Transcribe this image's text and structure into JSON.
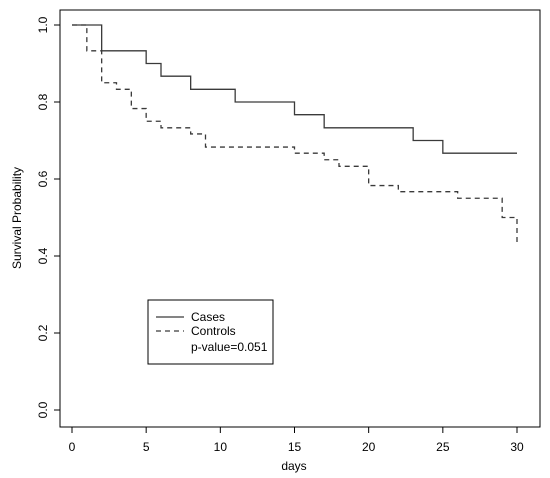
{
  "chart_data": {
    "type": "line",
    "step": true,
    "xlabel": "days",
    "ylabel": "Survival Probability",
    "xlim": [
      0,
      30
    ],
    "ylim": [
      0,
      1
    ],
    "x_ticks": [
      0,
      5,
      10,
      15,
      20,
      25,
      30
    ],
    "y_ticks": [
      0.0,
      0.2,
      0.4,
      0.6,
      0.8,
      1.0
    ],
    "y_tick_labels": [
      "0.0",
      "0.2",
      "0.4",
      "0.6",
      "0.8",
      "1.0"
    ],
    "grid": false,
    "legend_position": "lower-left",
    "series": [
      {
        "name": "Cases",
        "line_style": "solid",
        "color": "#3a3a3a",
        "points": [
          [
            0,
            1.0
          ],
          [
            2,
            0.933
          ],
          [
            5,
            0.9
          ],
          [
            6,
            0.867
          ],
          [
            8,
            0.833
          ],
          [
            11,
            0.8
          ],
          [
            15,
            0.767
          ],
          [
            17,
            0.733
          ],
          [
            23,
            0.7
          ],
          [
            25,
            0.667
          ],
          [
            30,
            0.667
          ]
        ]
      },
      {
        "name": "Controls",
        "line_style": "dashed",
        "color": "#3a3a3a",
        "points": [
          [
            0,
            1.0
          ],
          [
            1,
            0.933
          ],
          [
            2,
            0.85
          ],
          [
            3,
            0.833
          ],
          [
            4,
            0.783
          ],
          [
            5,
            0.75
          ],
          [
            6,
            0.733
          ],
          [
            8,
            0.717
          ],
          [
            9,
            0.683
          ],
          [
            15,
            0.667
          ],
          [
            17,
            0.65
          ],
          [
            18,
            0.633
          ],
          [
            20,
            0.583
          ],
          [
            22,
            0.567
          ],
          [
            26,
            0.55
          ],
          [
            29,
            0.5
          ],
          [
            30,
            0.433
          ]
        ]
      }
    ],
    "annotation": "p-value=0.051"
  }
}
